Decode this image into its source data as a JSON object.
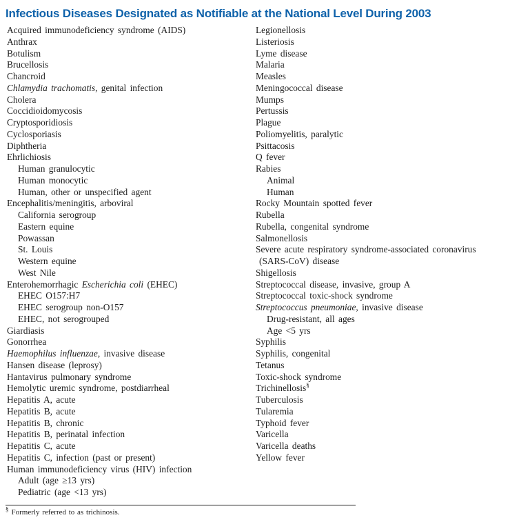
{
  "title": "Infectious Diseases Designated as Notifiable at the National Level During 2003",
  "colors": {
    "title_blue": "#0f62aa",
    "body_text": "#1c1c1c",
    "background": "#ffffff"
  },
  "columns": {
    "left": [
      {
        "indent": 0,
        "parts": [
          {
            "t": "Acquired immunodeficiency syndrome (AIDS)"
          }
        ]
      },
      {
        "indent": 0,
        "parts": [
          {
            "t": "Anthrax"
          }
        ]
      },
      {
        "indent": 0,
        "parts": [
          {
            "t": "Botulism"
          }
        ]
      },
      {
        "indent": 0,
        "parts": [
          {
            "t": "Brucellosis"
          }
        ]
      },
      {
        "indent": 0,
        "parts": [
          {
            "t": "Chancroid"
          }
        ]
      },
      {
        "indent": 0,
        "parts": [
          {
            "t": "Chlamydia trachomatis",
            "s": "i"
          },
          {
            "t": ", genital infection"
          }
        ]
      },
      {
        "indent": 0,
        "parts": [
          {
            "t": "Cholera"
          }
        ]
      },
      {
        "indent": 0,
        "parts": [
          {
            "t": "Coccidioidomycosis"
          }
        ]
      },
      {
        "indent": 0,
        "parts": [
          {
            "t": "Cryptosporidiosis"
          }
        ]
      },
      {
        "indent": 0,
        "parts": [
          {
            "t": "Cyclosporiasis"
          }
        ]
      },
      {
        "indent": 0,
        "parts": [
          {
            "t": "Diphtheria"
          }
        ]
      },
      {
        "indent": 0,
        "parts": [
          {
            "t": "Ehrlichiosis"
          }
        ]
      },
      {
        "indent": 1,
        "parts": [
          {
            "t": "Human granulocytic"
          }
        ]
      },
      {
        "indent": 1,
        "parts": [
          {
            "t": "Human monocytic"
          }
        ]
      },
      {
        "indent": 1,
        "parts": [
          {
            "t": "Human, other or unspecified agent"
          }
        ]
      },
      {
        "indent": 0,
        "parts": [
          {
            "t": "Encephalitis/meningitis, arboviral"
          }
        ]
      },
      {
        "indent": 1,
        "parts": [
          {
            "t": "California serogroup"
          }
        ]
      },
      {
        "indent": 1,
        "parts": [
          {
            "t": "Eastern equine"
          }
        ]
      },
      {
        "indent": 1,
        "parts": [
          {
            "t": "Powassan"
          }
        ]
      },
      {
        "indent": 1,
        "parts": [
          {
            "t": "St. Louis"
          }
        ]
      },
      {
        "indent": 1,
        "parts": [
          {
            "t": "Western equine"
          }
        ]
      },
      {
        "indent": 1,
        "parts": [
          {
            "t": "West Nile"
          }
        ]
      },
      {
        "indent": 0,
        "parts": [
          {
            "t": "Enterohemorrhagic "
          },
          {
            "t": "Escherichia coli",
            "s": "i"
          },
          {
            "t": " (EHEC)"
          }
        ]
      },
      {
        "indent": 1,
        "parts": [
          {
            "t": "EHEC O157:H7"
          }
        ]
      },
      {
        "indent": 1,
        "parts": [
          {
            "t": "EHEC serogroup non-O157"
          }
        ]
      },
      {
        "indent": 1,
        "parts": [
          {
            "t": "EHEC, not serogrouped"
          }
        ]
      },
      {
        "indent": 0,
        "parts": [
          {
            "t": "Giardiasis"
          }
        ]
      },
      {
        "indent": 0,
        "parts": [
          {
            "t": "Gonorrhea"
          }
        ]
      },
      {
        "indent": 0,
        "parts": [
          {
            "t": "Haemophilus influenzae",
            "s": "i"
          },
          {
            "t": ", invasive disease"
          }
        ]
      },
      {
        "indent": 0,
        "parts": [
          {
            "t": "Hansen disease (leprosy)"
          }
        ]
      },
      {
        "indent": 0,
        "parts": [
          {
            "t": "Hantavirus pulmonary syndrome"
          }
        ]
      },
      {
        "indent": 0,
        "parts": [
          {
            "t": "Hemolytic uremic syndrome, postdiarrheal"
          }
        ]
      },
      {
        "indent": 0,
        "parts": [
          {
            "t": "Hepatitis A, acute"
          }
        ]
      },
      {
        "indent": 0,
        "parts": [
          {
            "t": "Hepatitis B, acute"
          }
        ]
      },
      {
        "indent": 0,
        "parts": [
          {
            "t": "Hepatitis B, chronic"
          }
        ]
      },
      {
        "indent": 0,
        "parts": [
          {
            "t": "Hepatitis B, perinatal infection"
          }
        ]
      },
      {
        "indent": 0,
        "parts": [
          {
            "t": "Hepatitis C, acute"
          }
        ]
      },
      {
        "indent": 0,
        "parts": [
          {
            "t": "Hepatitis C, infection (past or present)"
          }
        ]
      },
      {
        "indent": 0,
        "parts": [
          {
            "t": "Human immunodeficiency virus (HIV) infection"
          }
        ]
      },
      {
        "indent": 1,
        "parts": [
          {
            "t": "Adult (age ≥13 yrs)"
          }
        ]
      },
      {
        "indent": 1,
        "parts": [
          {
            "t": "Pediatric (age <13 yrs)"
          }
        ]
      }
    ],
    "right": [
      {
        "indent": 0,
        "parts": [
          {
            "t": "Legionellosis"
          }
        ]
      },
      {
        "indent": 0,
        "parts": [
          {
            "t": "Listeriosis"
          }
        ]
      },
      {
        "indent": 0,
        "parts": [
          {
            "t": "Lyme disease"
          }
        ]
      },
      {
        "indent": 0,
        "parts": [
          {
            "t": "Malaria"
          }
        ]
      },
      {
        "indent": 0,
        "parts": [
          {
            "t": "Measles"
          }
        ]
      },
      {
        "indent": 0,
        "parts": [
          {
            "t": "Meningococcal disease"
          }
        ]
      },
      {
        "indent": 0,
        "parts": [
          {
            "t": "Mumps"
          }
        ]
      },
      {
        "indent": 0,
        "parts": [
          {
            "t": "Pertussis"
          }
        ]
      },
      {
        "indent": 0,
        "parts": [
          {
            "t": "Plague"
          }
        ]
      },
      {
        "indent": 0,
        "parts": [
          {
            "t": "Poliomyelitis, paralytic"
          }
        ]
      },
      {
        "indent": 0,
        "parts": [
          {
            "t": "Psittacosis"
          }
        ]
      },
      {
        "indent": 0,
        "parts": [
          {
            "t": "Q fever"
          }
        ]
      },
      {
        "indent": 0,
        "parts": [
          {
            "t": "Rabies"
          }
        ]
      },
      {
        "indent": 1,
        "parts": [
          {
            "t": "Animal"
          }
        ]
      },
      {
        "indent": 1,
        "parts": [
          {
            "t": "Human"
          }
        ]
      },
      {
        "indent": 0,
        "parts": [
          {
            "t": "Rocky Mountain spotted fever"
          }
        ]
      },
      {
        "indent": 0,
        "parts": [
          {
            "t": "Rubella"
          }
        ]
      },
      {
        "indent": 0,
        "parts": [
          {
            "t": "Rubella, congenital syndrome"
          }
        ]
      },
      {
        "indent": 0,
        "parts": [
          {
            "t": "Salmonellosis"
          }
        ]
      },
      {
        "indent": 0,
        "parts": [
          {
            "t": "Severe acute respiratory syndrome-associated coronavirus"
          }
        ]
      },
      {
        "indent": 2,
        "parts": [
          {
            "t": "(SARS-CoV) disease"
          }
        ]
      },
      {
        "indent": 0,
        "parts": [
          {
            "t": "Shigellosis"
          }
        ]
      },
      {
        "indent": 0,
        "parts": [
          {
            "t": "Streptococcal disease, invasive, group A"
          }
        ]
      },
      {
        "indent": 0,
        "parts": [
          {
            "t": "Streptococcal toxic-shock syndrome"
          }
        ]
      },
      {
        "indent": 0,
        "parts": [
          {
            "t": "Streptococcus pneumoniae",
            "s": "i"
          },
          {
            "t": ", invasive disease"
          }
        ]
      },
      {
        "indent": 1,
        "parts": [
          {
            "t": "Drug-resistant, all ages"
          }
        ]
      },
      {
        "indent": 1,
        "parts": [
          {
            "t": "Age <5 yrs"
          }
        ]
      },
      {
        "indent": 0,
        "parts": [
          {
            "t": "Syphilis"
          }
        ]
      },
      {
        "indent": 0,
        "parts": [
          {
            "t": "Syphilis, congenital"
          }
        ]
      },
      {
        "indent": 0,
        "parts": [
          {
            "t": "Tetanus"
          }
        ]
      },
      {
        "indent": 0,
        "parts": [
          {
            "t": "Toxic-shock syndrome"
          }
        ]
      },
      {
        "indent": 0,
        "parts": [
          {
            "t": "Trichinellosis"
          },
          {
            "t": "§",
            "s": "sup"
          }
        ]
      },
      {
        "indent": 0,
        "parts": [
          {
            "t": "Tuberculosis"
          }
        ]
      },
      {
        "indent": 0,
        "parts": [
          {
            "t": "Tularemia"
          }
        ]
      },
      {
        "indent": 0,
        "parts": [
          {
            "t": "Typhoid fever"
          }
        ]
      },
      {
        "indent": 0,
        "parts": [
          {
            "t": "Varicella"
          }
        ]
      },
      {
        "indent": 0,
        "parts": [
          {
            "t": "Varicella deaths"
          }
        ]
      },
      {
        "indent": 0,
        "parts": [
          {
            "t": "Yellow fever"
          }
        ]
      }
    ]
  },
  "footnote": {
    "marker": "§",
    "text": "Formerly referred to as trichinosis."
  }
}
